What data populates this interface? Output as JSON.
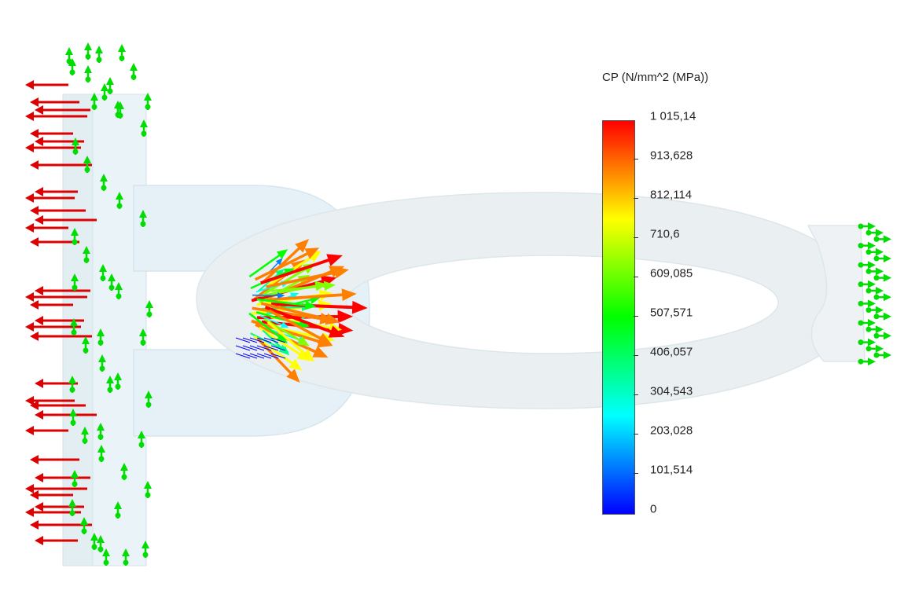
{
  "legend": {
    "title": "CP (N/mm^2 (MPa))",
    "min": 0,
    "max": 1015.14,
    "ticks": [
      "1 015,14",
      "913,628",
      "812,114",
      "710,6",
      "609,085",
      "507,571",
      "406,057",
      "304,543",
      "203,028",
      "101,514",
      "0"
    ],
    "gradient": [
      "#ff0000",
      "#ff8000",
      "#ffff00",
      "#80ff00",
      "#00ff00",
      "#00ff80",
      "#00ffff",
      "#0080ff",
      "#0000ff"
    ]
  },
  "colors": {
    "fixture": "#00dd00",
    "load": "#dd0000",
    "part_fill": "#e6f2f8",
    "part_edge": "#cfe0ea"
  },
  "scene": {
    "parts": [
      "flange",
      "stem",
      "ring",
      "connector"
    ],
    "annotations": [
      "fixture-arrows",
      "load-arrows",
      "contact-pressure-vectors"
    ]
  }
}
